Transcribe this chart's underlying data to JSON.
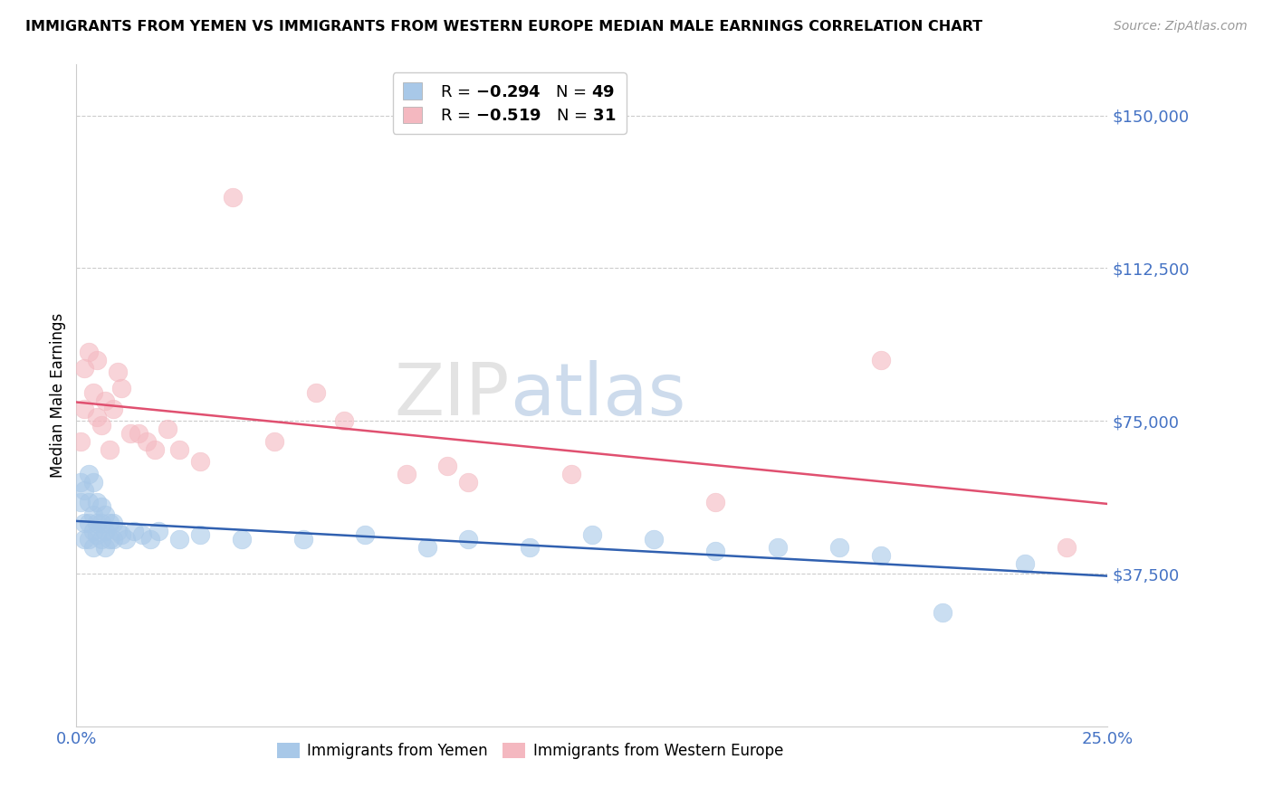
{
  "title": "IMMIGRANTS FROM YEMEN VS IMMIGRANTS FROM WESTERN EUROPE MEDIAN MALE EARNINGS CORRELATION CHART",
  "source": "Source: ZipAtlas.com",
  "ylabel": "Median Male Earnings",
  "xlim": [
    0.0,
    0.25
  ],
  "ylim": [
    0,
    162500
  ],
  "yticks": [
    37500,
    75000,
    112500,
    150000
  ],
  "ytick_labels": [
    "$37,500",
    "$75,000",
    "$112,500",
    "$150,000"
  ],
  "xticks": [
    0.0,
    0.25
  ],
  "xtick_labels": [
    "0.0%",
    "25.0%"
  ],
  "legend_label1": "Immigrants from Yemen",
  "legend_label2": "Immigrants from Western Europe",
  "color_blue": "#a8c8e8",
  "color_pink": "#f4b8c0",
  "color_line_blue": "#3060b0",
  "color_line_pink": "#e05070",
  "color_axis_ticks": "#4472c4",
  "watermark_zip": "ZIP",
  "watermark_atlas": "atlas",
  "scatter_yemen_x": [
    0.001,
    0.001,
    0.002,
    0.002,
    0.002,
    0.003,
    0.003,
    0.003,
    0.003,
    0.004,
    0.004,
    0.004,
    0.004,
    0.005,
    0.005,
    0.005,
    0.006,
    0.006,
    0.006,
    0.007,
    0.007,
    0.007,
    0.008,
    0.008,
    0.009,
    0.009,
    0.01,
    0.011,
    0.012,
    0.014,
    0.016,
    0.018,
    0.02,
    0.025,
    0.03,
    0.04,
    0.055,
    0.07,
    0.085,
    0.095,
    0.11,
    0.125,
    0.14,
    0.155,
    0.17,
    0.185,
    0.195,
    0.21,
    0.23
  ],
  "scatter_yemen_y": [
    60000,
    55000,
    58000,
    50000,
    46000,
    62000,
    55000,
    50000,
    46000,
    60000,
    52000,
    48000,
    44000,
    55000,
    50000,
    47000,
    54000,
    50000,
    46000,
    52000,
    48000,
    44000,
    50000,
    46000,
    50000,
    46000,
    48000,
    47000,
    46000,
    48000,
    47000,
    46000,
    48000,
    46000,
    47000,
    46000,
    46000,
    47000,
    44000,
    46000,
    44000,
    47000,
    46000,
    43000,
    44000,
    44000,
    42000,
    28000,
    40000
  ],
  "scatter_we_x": [
    0.001,
    0.002,
    0.002,
    0.003,
    0.004,
    0.005,
    0.005,
    0.006,
    0.007,
    0.008,
    0.009,
    0.01,
    0.011,
    0.013,
    0.015,
    0.017,
    0.019,
    0.022,
    0.025,
    0.03,
    0.038,
    0.048,
    0.058,
    0.065,
    0.08,
    0.09,
    0.095,
    0.12,
    0.155,
    0.195,
    0.24
  ],
  "scatter_we_y": [
    70000,
    88000,
    78000,
    92000,
    82000,
    90000,
    76000,
    74000,
    80000,
    68000,
    78000,
    87000,
    83000,
    72000,
    72000,
    70000,
    68000,
    73000,
    68000,
    65000,
    130000,
    70000,
    82000,
    75000,
    62000,
    64000,
    60000,
    62000,
    55000,
    90000,
    44000
  ]
}
